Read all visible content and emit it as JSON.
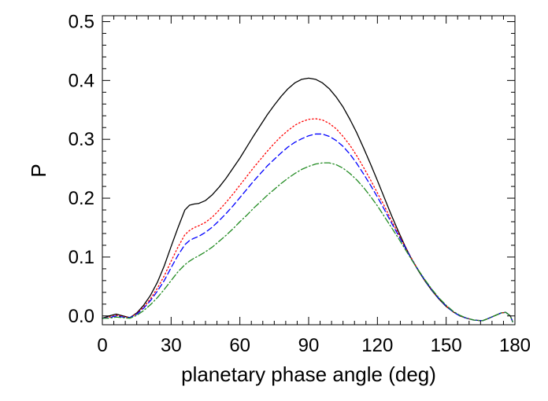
{
  "chart_data": {
    "type": "line",
    "title": "",
    "xlabel": "planetary phase angle (deg)",
    "ylabel": "P",
    "xlim": [
      0,
      180
    ],
    "ylim": [
      -0.015,
      0.51
    ],
    "xticks": [
      0,
      30,
      60,
      90,
      120,
      150,
      180
    ],
    "xtick_labels": [
      "0",
      "30",
      "60",
      "90",
      "120",
      "150",
      "180"
    ],
    "yticks": [
      0.0,
      0.1,
      0.2,
      0.3,
      0.4,
      0.5
    ],
    "ytick_labels": [
      "0.0",
      "0.1",
      "0.2",
      "0.3",
      "0.4",
      "0.5"
    ],
    "grid": false,
    "legend": "none",
    "series": [
      {
        "color": "#000000",
        "dash": "solid",
        "x": [
          0,
          3,
          6,
          9,
          12,
          15,
          18,
          21,
          24,
          27,
          30,
          33,
          36,
          38,
          40,
          42,
          45,
          48,
          51,
          54,
          57,
          60,
          63,
          66,
          69,
          72,
          75,
          78,
          81,
          84,
          87,
          90,
          93,
          96,
          99,
          102,
          105,
          108,
          111,
          114,
          117,
          120,
          123,
          126,
          129,
          132,
          135,
          138,
          141,
          144,
          147,
          150,
          153,
          156,
          159,
          162,
          165,
          166,
          168,
          171,
          174,
          176,
          178,
          179
        ],
        "y": [
          -0.004,
          0.0,
          0.003,
          0.0,
          -0.003,
          0.005,
          0.018,
          0.035,
          0.057,
          0.085,
          0.118,
          0.15,
          0.18,
          0.188,
          0.19,
          0.191,
          0.196,
          0.206,
          0.219,
          0.234,
          0.251,
          0.268,
          0.287,
          0.306,
          0.324,
          0.342,
          0.358,
          0.373,
          0.386,
          0.396,
          0.402,
          0.404,
          0.402,
          0.396,
          0.386,
          0.372,
          0.355,
          0.334,
          0.311,
          0.285,
          0.258,
          0.23,
          0.201,
          0.172,
          0.145,
          0.119,
          0.096,
          0.076,
          0.058,
          0.042,
          0.028,
          0.016,
          0.007,
          0.0,
          -0.004,
          -0.007,
          -0.008,
          -0.008,
          -0.005,
          0.0,
          0.005,
          0.006,
          0.0,
          -0.01
        ]
      },
      {
        "color": "#ff0000",
        "dash": "dotted",
        "x": [
          0,
          3,
          6,
          9,
          12,
          15,
          18,
          21,
          24,
          27,
          30,
          33,
          36,
          38,
          40,
          42,
          45,
          48,
          51,
          54,
          57,
          60,
          63,
          66,
          69,
          72,
          75,
          78,
          81,
          84,
          87,
          90,
          93,
          96,
          99,
          102,
          105,
          108,
          111,
          114,
          117,
          120,
          123,
          126,
          129,
          132,
          135,
          138,
          141,
          144,
          147,
          150,
          153,
          156,
          159,
          162,
          165,
          166,
          168,
          171,
          174,
          176,
          178,
          179
        ],
        "y": [
          -0.004,
          -0.002,
          0.001,
          -0.001,
          -0.003,
          0.004,
          0.015,
          0.029,
          0.047,
          0.068,
          0.093,
          0.117,
          0.138,
          0.145,
          0.15,
          0.153,
          0.159,
          0.168,
          0.18,
          0.193,
          0.207,
          0.222,
          0.237,
          0.252,
          0.266,
          0.28,
          0.293,
          0.305,
          0.315,
          0.324,
          0.33,
          0.334,
          0.335,
          0.333,
          0.327,
          0.318,
          0.305,
          0.29,
          0.272,
          0.252,
          0.231,
          0.209,
          0.187,
          0.163,
          0.141,
          0.118,
          0.097,
          0.077,
          0.059,
          0.043,
          0.029,
          0.017,
          0.007,
          0.0,
          -0.004,
          -0.007,
          -0.008,
          -0.008,
          -0.005,
          0.0,
          0.005,
          0.006,
          0.0,
          -0.01
        ]
      },
      {
        "color": "#0000ff",
        "dash": "dashed",
        "x": [
          0,
          3,
          6,
          9,
          12,
          15,
          18,
          21,
          24,
          27,
          30,
          33,
          36,
          38,
          40,
          42,
          45,
          48,
          51,
          54,
          57,
          60,
          63,
          66,
          69,
          72,
          75,
          78,
          81,
          84,
          87,
          90,
          93,
          96,
          99,
          102,
          105,
          108,
          111,
          114,
          117,
          120,
          123,
          126,
          129,
          132,
          135,
          138,
          141,
          144,
          147,
          150,
          153,
          156,
          159,
          162,
          165,
          166,
          168,
          171,
          174,
          176,
          178,
          179
        ],
        "y": [
          -0.004,
          -0.003,
          0.0,
          -0.002,
          -0.003,
          0.003,
          0.013,
          0.026,
          0.042,
          0.06,
          0.082,
          0.103,
          0.121,
          0.128,
          0.132,
          0.135,
          0.142,
          0.151,
          0.162,
          0.174,
          0.187,
          0.201,
          0.215,
          0.229,
          0.242,
          0.255,
          0.266,
          0.277,
          0.287,
          0.295,
          0.301,
          0.306,
          0.309,
          0.309,
          0.305,
          0.298,
          0.288,
          0.275,
          0.259,
          0.241,
          0.222,
          0.202,
          0.181,
          0.159,
          0.138,
          0.117,
          0.096,
          0.077,
          0.059,
          0.043,
          0.029,
          0.017,
          0.007,
          0.0,
          -0.004,
          -0.007,
          -0.008,
          -0.008,
          -0.005,
          0.0,
          0.005,
          0.006,
          0.0,
          -0.01
        ]
      },
      {
        "color": "#228b22",
        "dash": "dashdot",
        "x": [
          0,
          3,
          6,
          9,
          12,
          15,
          18,
          21,
          24,
          27,
          30,
          33,
          36,
          38,
          40,
          42,
          45,
          48,
          51,
          54,
          57,
          60,
          63,
          66,
          69,
          72,
          75,
          78,
          81,
          84,
          87,
          90,
          93,
          96,
          99,
          102,
          105,
          108,
          111,
          114,
          117,
          120,
          123,
          126,
          129,
          132,
          135,
          138,
          141,
          144,
          147,
          150,
          153,
          156,
          159,
          162,
          165,
          166,
          168,
          171,
          174,
          176,
          178,
          179
        ],
        "y": [
          -0.004,
          -0.004,
          -0.002,
          -0.003,
          -0.004,
          0.001,
          0.009,
          0.019,
          0.031,
          0.045,
          0.06,
          0.075,
          0.087,
          0.093,
          0.098,
          0.102,
          0.109,
          0.117,
          0.127,
          0.137,
          0.148,
          0.16,
          0.171,
          0.183,
          0.194,
          0.205,
          0.215,
          0.225,
          0.234,
          0.242,
          0.249,
          0.254,
          0.258,
          0.26,
          0.26,
          0.257,
          0.251,
          0.242,
          0.231,
          0.218,
          0.203,
          0.187,
          0.169,
          0.151,
          0.133,
          0.114,
          0.095,
          0.077,
          0.06,
          0.044,
          0.03,
          0.018,
          0.008,
          0.001,
          -0.004,
          -0.007,
          -0.008,
          -0.008,
          -0.005,
          0.0,
          0.005,
          0.006,
          0.0,
          -0.01
        ]
      }
    ]
  }
}
